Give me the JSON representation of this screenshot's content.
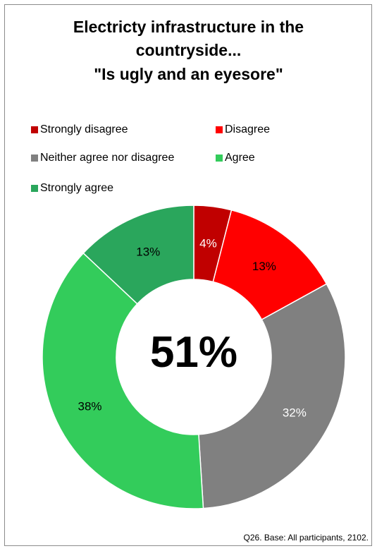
{
  "chart_data": {
    "type": "pie",
    "variant": "donut",
    "title_lines": [
      "Electricty infrastructure in the",
      "countryside...",
      "\"Is ugly and an eyesore\""
    ],
    "center_label": "51%",
    "legend_placement": "top",
    "categories": [
      "Strongly disagree",
      "Disagree",
      "Neither agree nor disagree",
      "Agree",
      "Strongly agree"
    ],
    "values": [
      4,
      13,
      32,
      38,
      13
    ],
    "labels": [
      "4%",
      "13%",
      "32%",
      "38%",
      "13%"
    ],
    "colors": [
      "#c00000",
      "#ff0000",
      "#808080",
      "#33cc5b",
      "#2aa65c"
    ],
    "label_colors": [
      "#ffffff",
      "#000000",
      "#ffffff",
      "#000000",
      "#000000"
    ]
  },
  "footer": "Q26. Base: All participants, 2102."
}
